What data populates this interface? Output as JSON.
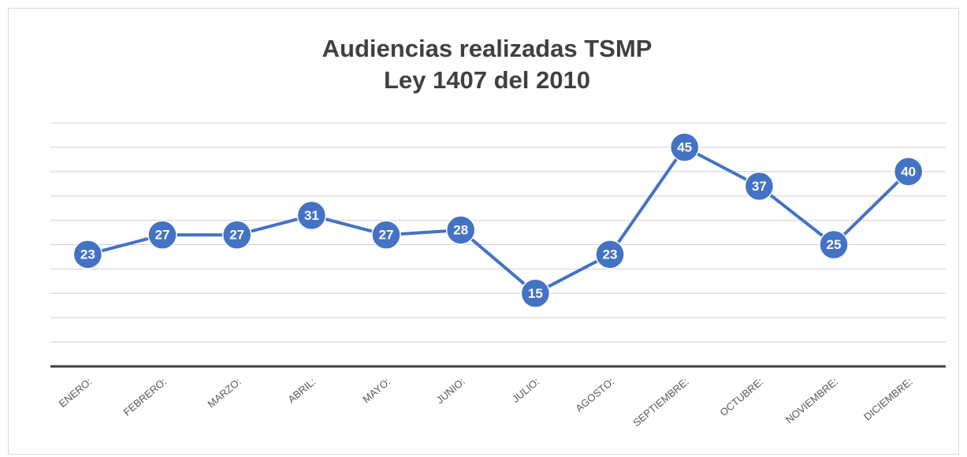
{
  "chart_data": {
    "type": "line",
    "title": "Audiencias realizadas TSMP",
    "subtitle": "Ley 1407 del 2010",
    "categories": [
      "ENERO:",
      "FEBRERO:",
      "MARZO:",
      "ABRIL:",
      "MAYO:",
      "JUNIO:",
      "JULIO:",
      "AGOSTO:",
      "SEPTIEMBRE:",
      "OCTUBRE:",
      "NOVIEMBRE:",
      "DICIEMBRE:"
    ],
    "values": [
      23,
      27,
      27,
      31,
      27,
      28,
      15,
      23,
      45,
      37,
      25,
      40
    ],
    "color": "#4472c4",
    "ylim": [
      0,
      50
    ],
    "yticks": [
      0,
      5,
      10,
      15,
      20,
      25,
      30,
      35,
      40,
      45,
      50
    ],
    "grid": true
  }
}
